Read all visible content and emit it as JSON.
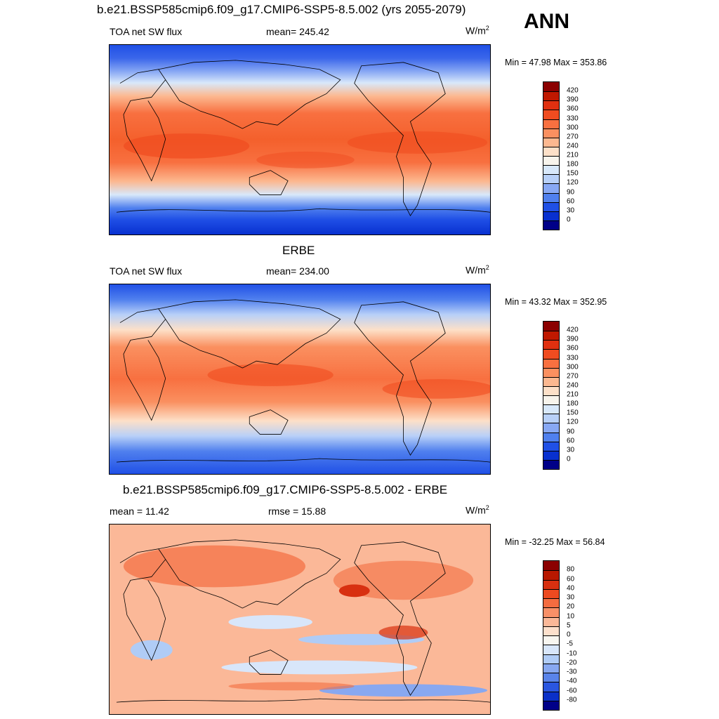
{
  "header": {
    "title": "b.e21.BSSP585cmip6.f09_g17.CMIP6-SSP5-8.5.002 (yrs 2055-2079)",
    "season": "ANN"
  },
  "panel1": {
    "left": "TOA net SW flux",
    "center": "mean= 245.42",
    "units_base": "W/m",
    "units_exp": "2",
    "minmax": "Min =  47.98 Max = 353.86"
  },
  "panel2": {
    "title": "ERBE",
    "left": "TOA net SW flux",
    "center": "mean= 234.00",
    "units_base": "W/m",
    "units_exp": "2",
    "minmax": "Min =  43.32 Max = 352.95"
  },
  "panel3": {
    "title": "b.e21.BSSP585cmip6.f09_g17.CMIP6-SSP5-8.5.002 - ERBE",
    "left": "mean =  11.42",
    "center": "rmse =  15.88",
    "units_base": "W/m",
    "units_exp": "2",
    "minmax": "Min = -32.25 Max =  56.84"
  },
  "colorbar_abs": {
    "labels": [
      "420",
      "390",
      "360",
      "330",
      "300",
      "270",
      "240",
      "210",
      "180",
      "150",
      "120",
      "90",
      "60",
      "30",
      "0"
    ],
    "colors": [
      "#8b0000",
      "#c01800",
      "#e03010",
      "#f04c20",
      "#f87040",
      "#fa9060",
      "#fcb890",
      "#fde0c8",
      "#f8f4ec",
      "#d8e8fa",
      "#b8d0f8",
      "#88a8f4",
      "#5080ee",
      "#2050e6",
      "#0830d0",
      "#000088"
    ]
  },
  "colorbar_diff": {
    "labels": [
      "80",
      "60",
      "40",
      "30",
      "20",
      "10",
      "5",
      "0",
      "-5",
      "-10",
      "-20",
      "-30",
      "-40",
      "-60",
      "-80"
    ],
    "colors": [
      "#8b0000",
      "#b81800",
      "#d83010",
      "#ec4a20",
      "#f46c40",
      "#f89068",
      "#fbb898",
      "#fde0cc",
      "#f8f6f0",
      "#d8e6fa",
      "#b0ccf6",
      "#88a8f0",
      "#5a84ea",
      "#2a56e0",
      "#0a30c8",
      "#000088"
    ]
  }
}
